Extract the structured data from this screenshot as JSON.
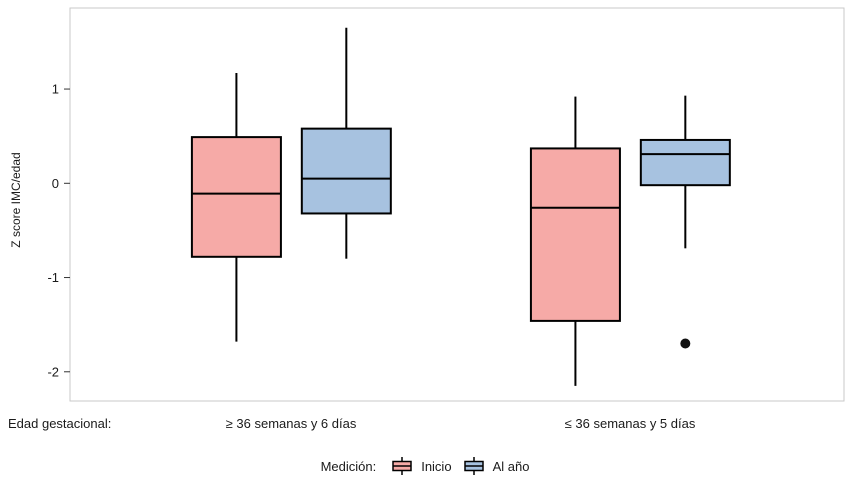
{
  "chart_data": {
    "type": "boxplot",
    "title": "",
    "ylabel": "Z score IMC/edad",
    "xlabel_prefix": "Edad gestacional:",
    "legend_title": "Medición:",
    "ylim": [
      -2.31,
      1.86
    ],
    "yticks": [
      1,
      0,
      -1,
      -2
    ],
    "grid": "off",
    "legend_position": "bottom",
    "groups": [
      {
        "label": "≥ 36 semanas y 6 días"
      },
      {
        "label": "≤ 36 semanas y 5 días"
      }
    ],
    "series": [
      {
        "name": "Inicio",
        "color": "#f6aaa7",
        "boxes": [
          {
            "group": 0,
            "whisker_low": -1.68,
            "q1": -0.78,
            "median": -0.11,
            "q3": 0.49,
            "whisker_high": 1.17,
            "outliers": []
          },
          {
            "group": 1,
            "whisker_low": -2.15,
            "q1": -1.46,
            "median": -0.26,
            "q3": 0.37,
            "whisker_high": 0.92,
            "outliers": []
          }
        ]
      },
      {
        "name": "Al año",
        "color": "#a7c2e0",
        "boxes": [
          {
            "group": 0,
            "whisker_low": -0.8,
            "q1": -0.32,
            "median": 0.05,
            "q3": 0.58,
            "whisker_high": 1.65,
            "outliers": []
          },
          {
            "group": 1,
            "whisker_low": -0.69,
            "q1": -0.02,
            "median": 0.31,
            "q3": 0.46,
            "whisker_high": 0.93,
            "outliers": [
              -1.7
            ]
          }
        ]
      }
    ]
  }
}
